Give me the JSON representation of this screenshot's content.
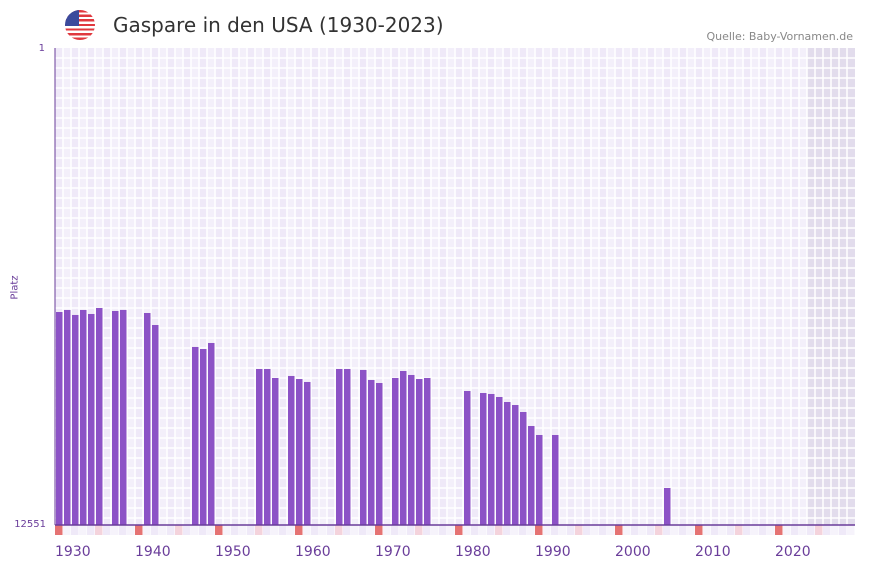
{
  "header": {
    "title": "Gaspare in den USA (1930-2023)",
    "source": "Quelle: Baby-Vornamen.de",
    "flag": "us-flag-icon"
  },
  "colors": {
    "bar": "#8c52c6",
    "axis": "#6a3d9a",
    "decade_marker": "#e57373",
    "half_marker": "#f4d3dc",
    "grid_bg": "#efe9f8",
    "future_bg": "#e2dcec"
  },
  "chart_data": {
    "type": "bar",
    "title": "Gaspare in den USA (1930-2023)",
    "ylabel": "Platz",
    "xlabel": "",
    "ylim": [
      12551,
      1
    ],
    "y_ticks": [
      "1",
      "12551"
    ],
    "xlim": [
      1930,
      2029
    ],
    "x_ticks": [
      "1930",
      "1940",
      "1950",
      "1960",
      "1970",
      "1980",
      "1990",
      "2000",
      "2010",
      "2020"
    ],
    "grid": true,
    "x": [
      1930,
      1931,
      1932,
      1933,
      1934,
      1935,
      1937,
      1938,
      1941,
      1942,
      1947,
      1948,
      1949,
      1955,
      1956,
      1957,
      1959,
      1960,
      1961,
      1965,
      1966,
      1968,
      1969,
      1970,
      1972,
      1973,
      1974,
      1975,
      1976,
      1981,
      1983,
      1984,
      1985,
      1986,
      1987,
      1988,
      1989,
      1990,
      1992,
      2006
    ],
    "values": [
      6947,
      6894,
      7025,
      6894,
      6999,
      6841,
      6920,
      6894,
      6973,
      7289,
      7867,
      7920,
      7762,
      8446,
      8446,
      8683,
      8630,
      8710,
      8788,
      8446,
      8446,
      8473,
      8736,
      8815,
      8683,
      8499,
      8604,
      8710,
      8683,
      9025,
      9078,
      9104,
      9183,
      9315,
      9394,
      9578,
      9946,
      10183,
      10183,
      11577
    ],
    "future_from": 2024
  }
}
